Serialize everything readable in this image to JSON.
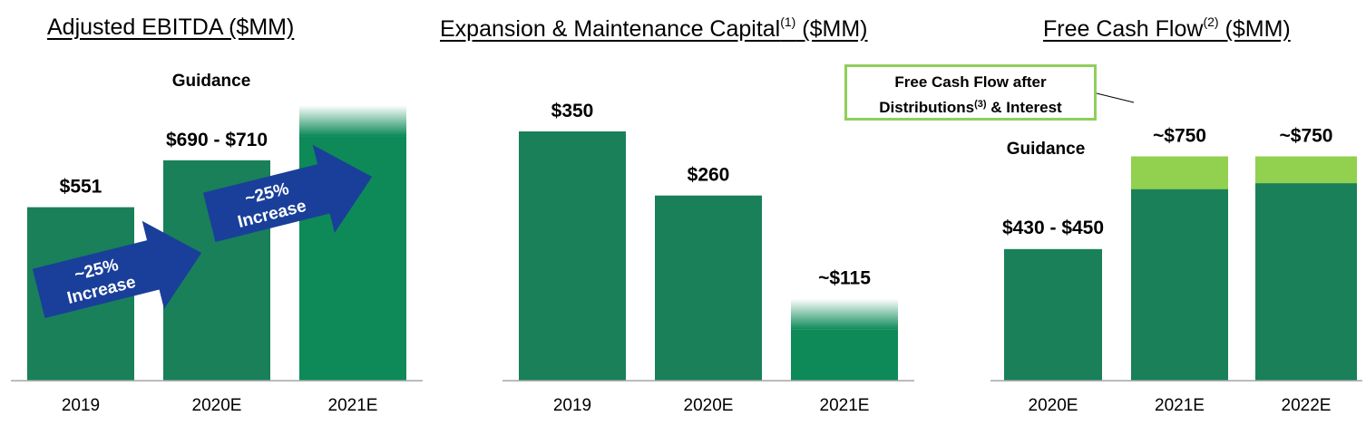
{
  "colors": {
    "bar": "#19805a",
    "bar_dark": "#0d8a58",
    "fcf_after": "#92d050",
    "arrow": "#1a3f9a",
    "axis": "#a6a6a6",
    "callout_border": "#8fcf5a"
  },
  "panels": [
    {
      "title_main": "Adjusted EBITDA ($MM)",
      "title_sup": "",
      "title_tail": ""
    },
    {
      "title_main": "Expansion & Maintenance Capital",
      "title_sup": "(1)",
      "title_tail": " ($MM)"
    },
    {
      "title_main": "Free Cash Flow",
      "title_sup": "(2)",
      "title_tail": " ($MM)"
    }
  ],
  "annotations": {
    "ebitda_guidance": "Guidance",
    "fcf_guidance": "Guidance",
    "arrow1_line1": "~25%",
    "arrow1_line2": "Increase",
    "arrow2_line1": "~25%",
    "arrow2_line2": "Increase",
    "callout_line1": "Free Cash Flow after",
    "callout_line2a": "Distributions",
    "callout_sup": "(3)",
    "callout_line2b": " &  Interest"
  },
  "chart_data": [
    {
      "type": "bar",
      "title": "Adjusted EBITDA ($MM)",
      "categories": [
        "2019",
        "2020E",
        "2021E"
      ],
      "values": [
        551,
        700,
        875
      ],
      "value_labels": [
        "$551",
        "$690 - $710",
        ""
      ],
      "ylim": [
        0,
        950
      ],
      "faded_top": [
        false,
        false,
        true
      ]
    },
    {
      "type": "bar",
      "title": "Expansion & Maintenance Capital(1) ($MM)",
      "categories": [
        "2019",
        "2020E",
        "2021E"
      ],
      "values": [
        350,
        260,
        115
      ],
      "value_labels": [
        "$350",
        "$260",
        "~$115"
      ],
      "ylim": [
        0,
        420
      ],
      "faded_top": [
        false,
        false,
        true
      ]
    },
    {
      "type": "bar",
      "title": "Free Cash Flow(2) ($MM)",
      "categories": [
        "2020E",
        "2021E",
        "2022E"
      ],
      "series": [
        {
          "values": [
            440,
            750,
            750
          ]
        },
        {
          "name": "Free Cash Flow after Distributions(3) & Interest",
          "values": [
            0,
            640,
            660
          ]
        }
      ],
      "value_labels": [
        "$430 - $450",
        "~$750",
        "~$750"
      ],
      "ylim": [
        0,
        1000
      ]
    }
  ]
}
